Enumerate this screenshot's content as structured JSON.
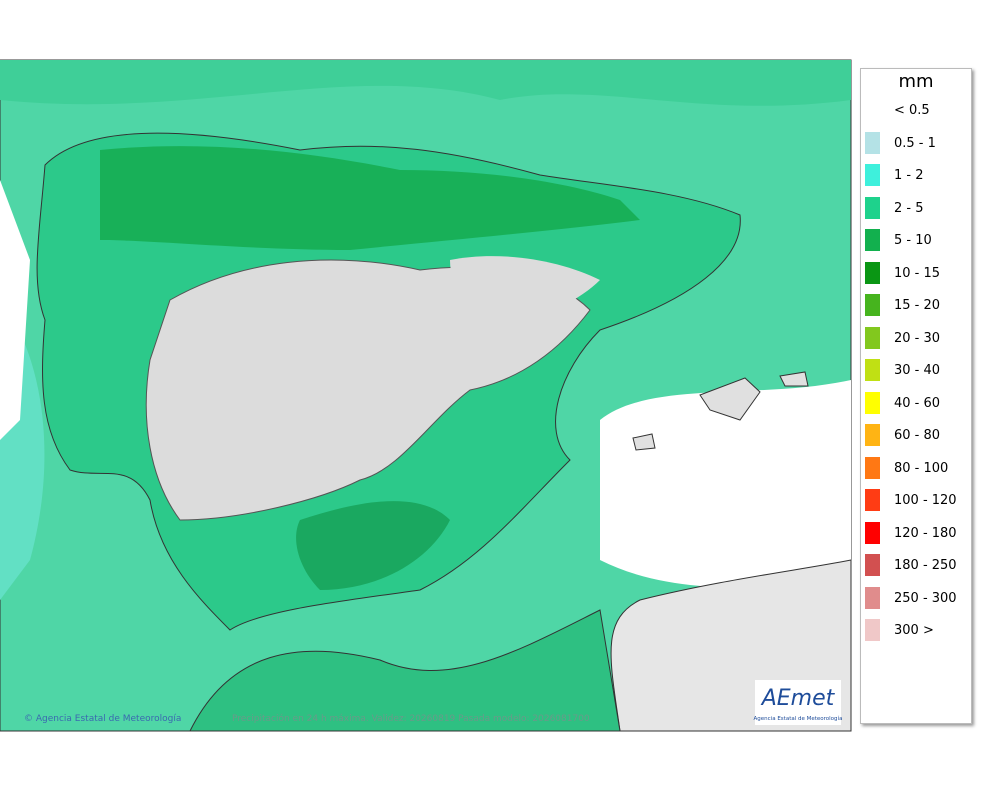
{
  "legend": {
    "title": "mm",
    "items": [
      {
        "label": "< 0.5",
        "color": "#ffffff"
      },
      {
        "label": "0.5 - 1",
        "color": "#b4e2e6"
      },
      {
        "label": "1 - 2",
        "color": "#3ef0dc"
      },
      {
        "label": "2 - 5",
        "color": "#1ed28c"
      },
      {
        "label": "5 - 10",
        "color": "#12b04e"
      },
      {
        "label": "10 - 15",
        "color": "#0a9614"
      },
      {
        "label": "15 - 20",
        "color": "#46b41e"
      },
      {
        "label": "20 - 30",
        "color": "#82c81e"
      },
      {
        "label": "30 - 40",
        "color": "#c0e014"
      },
      {
        "label": "40 - 60",
        "color": "#ffff00"
      },
      {
        "label": "60 - 80",
        "color": "#ffb414"
      },
      {
        "label": "80 - 100",
        "color": "#ff7814"
      },
      {
        "label": "100 - 120",
        "color": "#ff3c14"
      },
      {
        "label": "120 - 180",
        "color": "#ff0000"
      },
      {
        "label": "180 - 250",
        "color": "#d25050"
      },
      {
        "label": "250 - 300",
        "color": "#e08c8c"
      },
      {
        "label": "300 >",
        "color": "#f0c8c8"
      }
    ]
  },
  "map": {
    "copyright": "Agencia Estatal de Meteorología",
    "caption": "Precipitación en 24 h máxima. Validez: 20260819 Pasada modelo: 2026081700",
    "logo": {
      "name": "AEmet",
      "subtitle": "Agencia Estatal de Meteorología"
    }
  }
}
